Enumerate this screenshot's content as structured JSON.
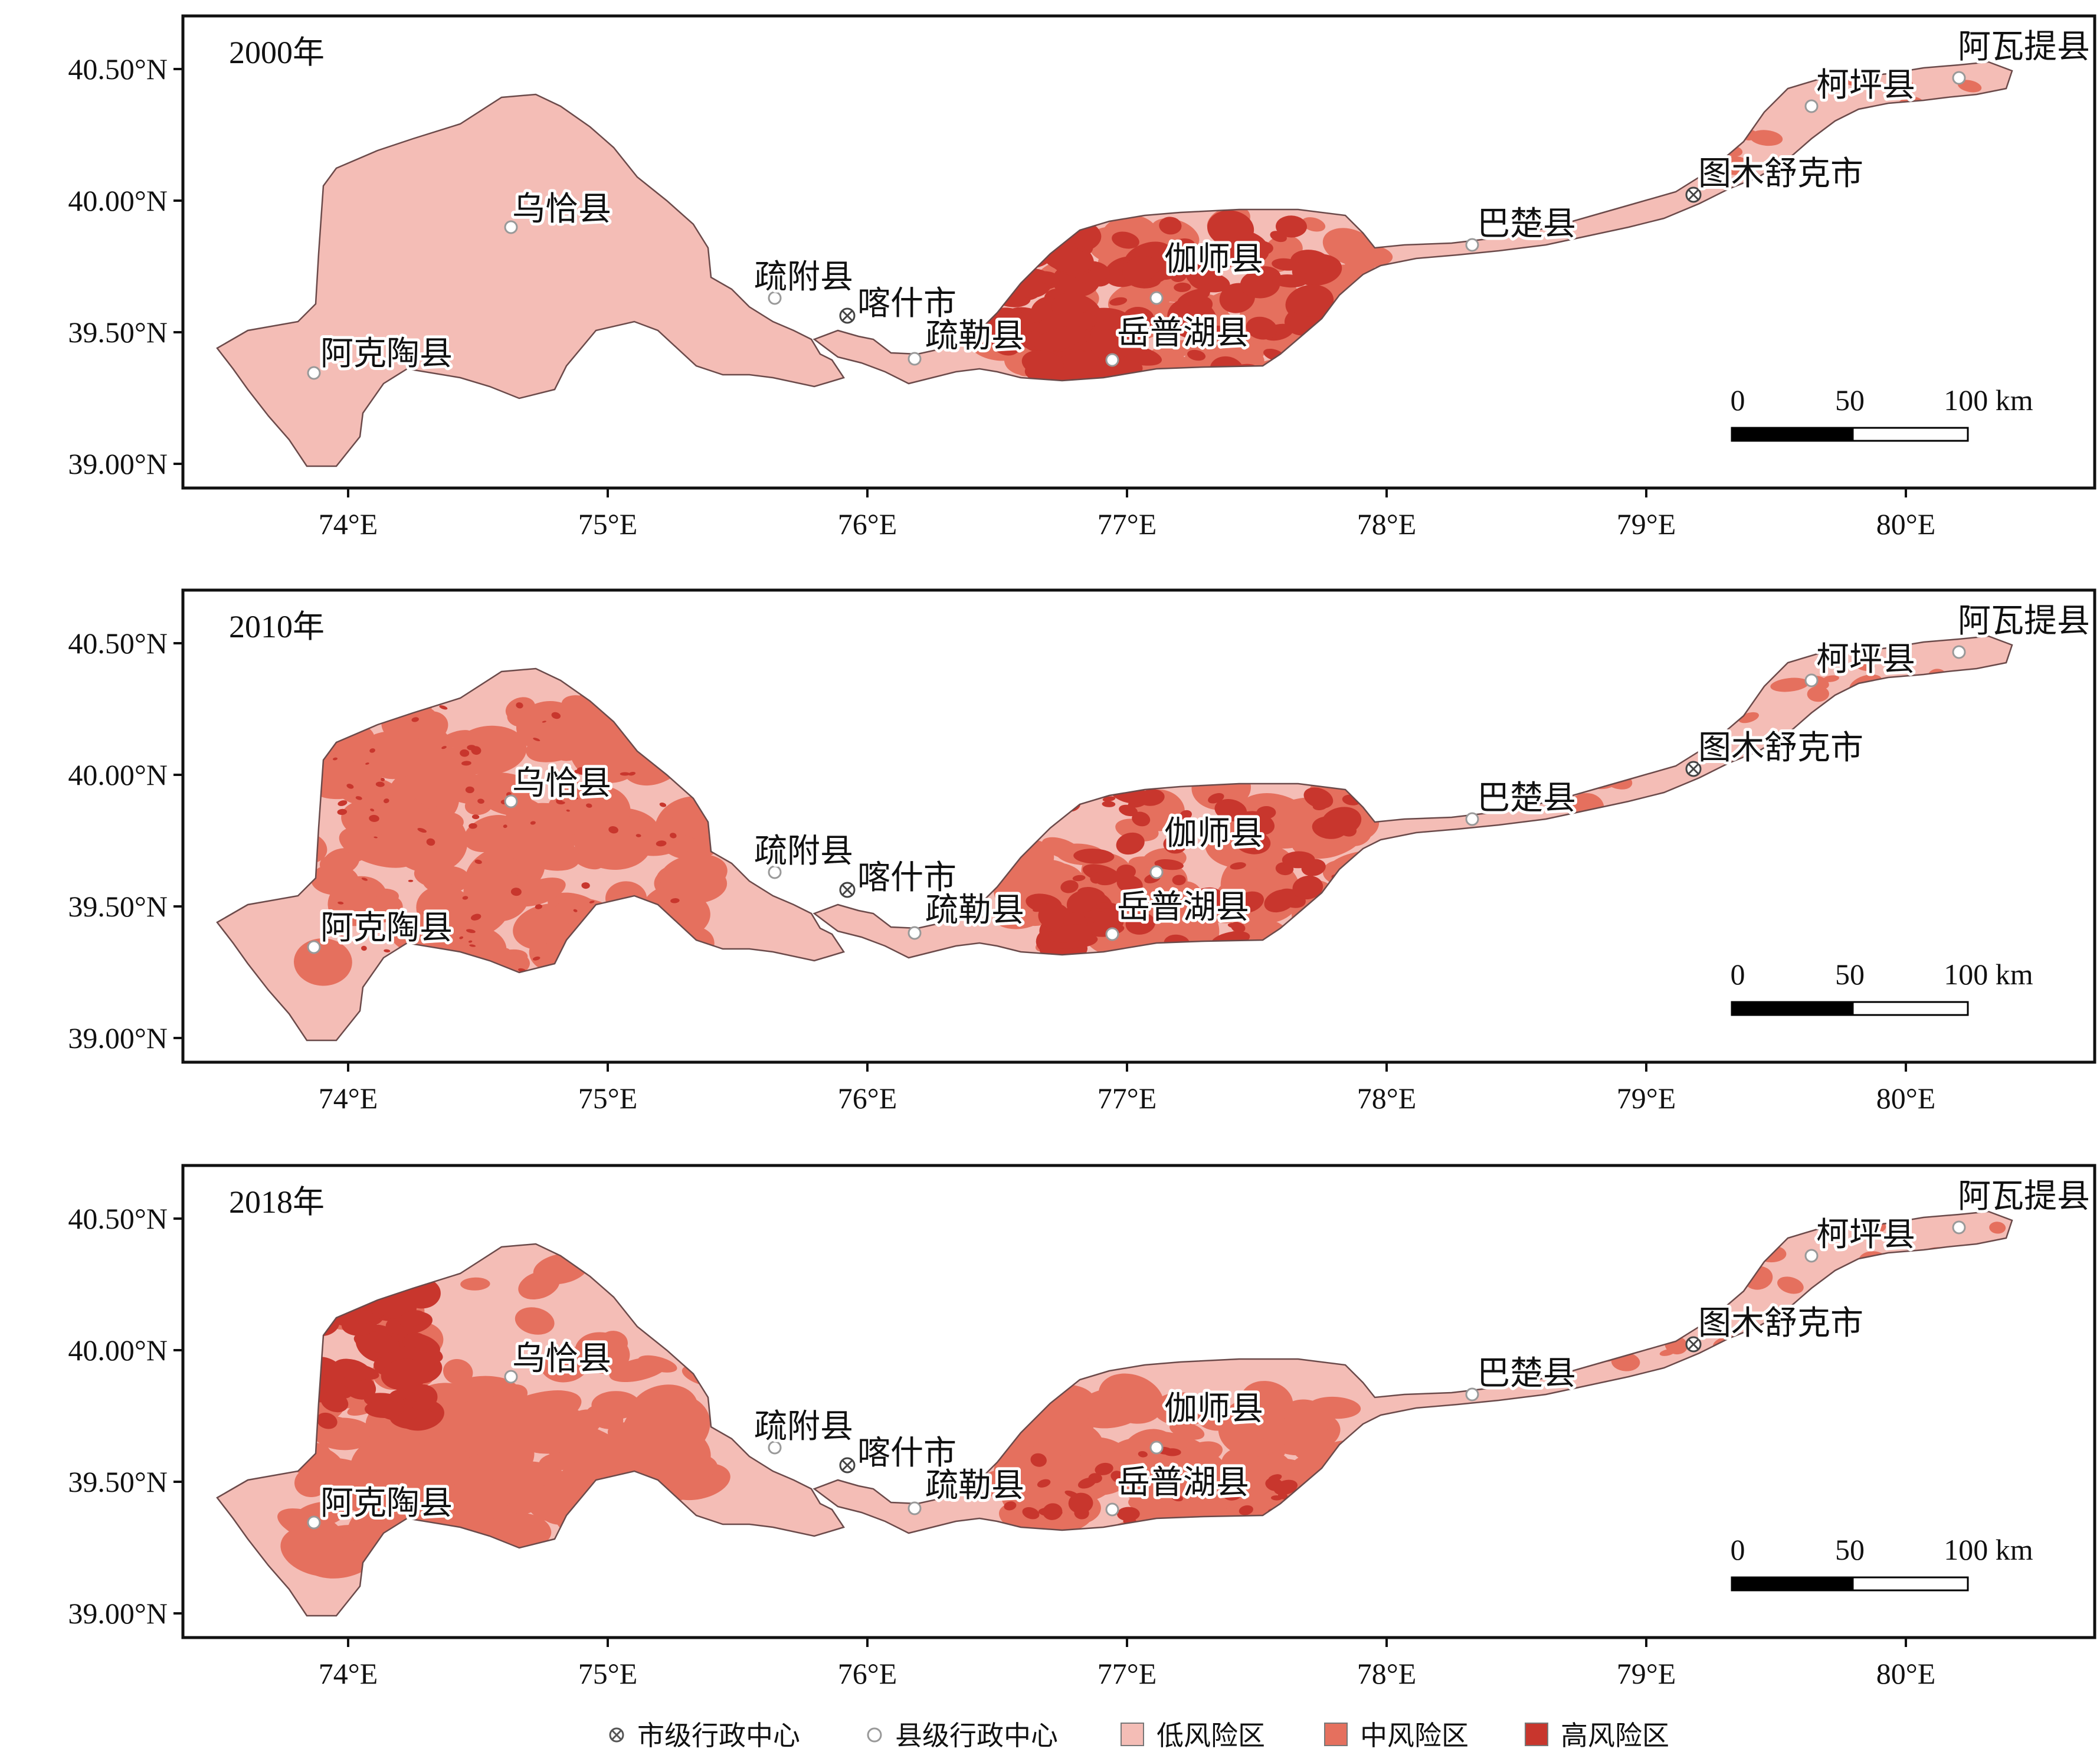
{
  "colors": {
    "low": "#f4bdb6",
    "mid": "#e5705e",
    "high": "#c8362d",
    "outline": "#6b4a4a",
    "frame": "#111111"
  },
  "axes": {
    "x_ticks": [
      "74°E",
      "75°E",
      "76°E",
      "77°E",
      "78°E",
      "79°E",
      "80°E"
    ],
    "y_ticks": [
      "40.50°N",
      "40.00°N",
      "39.50°N",
      "39.00°N"
    ]
  },
  "panels": [
    {
      "year_label": "2000年"
    },
    {
      "year_label": "2010年"
    },
    {
      "year_label": "2018年"
    }
  ],
  "places": {
    "city": [
      "喀什市",
      "图木舒克市"
    ],
    "counties": [
      "乌恰县",
      "阿克陶县",
      "疏附县",
      "疏勒县",
      "伽师县",
      "岳普湖县",
      "巴楚县",
      "柯坪县",
      "阿瓦提县"
    ]
  },
  "scale_bar": {
    "labels": [
      "0",
      "50",
      "100 km"
    ]
  },
  "legend": {
    "city_center": "市级行政中心",
    "county_center": "县级行政中心",
    "low": "低风险区",
    "mid": "中风险区",
    "high": "高风险区",
    "city_icon": "circle-cross-icon",
    "county_icon": "hollow-circle-icon"
  }
}
